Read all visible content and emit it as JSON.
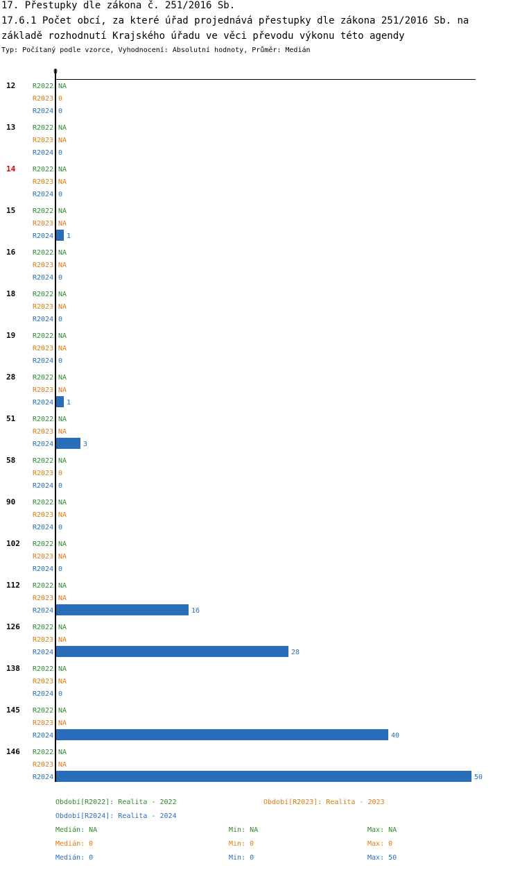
{
  "header": {
    "title1": "17. Přestupky dle zákona č. 251/2016 Sb.",
    "title2": "17.6.1 Počet obcí, za které úřad projednává přestupky dle zákona 251/2016 Sb. na",
    "title3": "základě rozhodnutí Krajského úřadu ve věci převodu výkonu této agendy",
    "subtitle": "Typ: Počítaný podle vzorce, Vyhodnocení: Absolutní hodnoty, Průměr: Medián"
  },
  "colors": {
    "R2022": "#2e8b2e",
    "R2023": "#e07b10",
    "R2024": "#2a6ebb",
    "bar": "#2a6ebb",
    "highlight": "#e00000"
  },
  "chart_data": {
    "type": "bar",
    "orientation": "horizontal",
    "x_tick": "0",
    "xlim": [
      0,
      50
    ],
    "highlight_category": "14",
    "categories": [
      "12",
      "13",
      "14",
      "15",
      "16",
      "18",
      "19",
      "28",
      "51",
      "58",
      "90",
      "102",
      "112",
      "126",
      "138",
      "145",
      "146"
    ],
    "series": [
      {
        "name": "R2022",
        "values": [
          null,
          null,
          null,
          null,
          null,
          null,
          null,
          null,
          null,
          null,
          null,
          null,
          null,
          null,
          null,
          null,
          null
        ]
      },
      {
        "name": "R2023",
        "values": [
          0,
          null,
          null,
          null,
          null,
          null,
          null,
          null,
          null,
          0,
          null,
          null,
          null,
          null,
          null,
          null,
          null
        ]
      },
      {
        "name": "R2024",
        "values": [
          0,
          0,
          0,
          1,
          0,
          0,
          0,
          1,
          3,
          0,
          0,
          0,
          16,
          28,
          0,
          40,
          50
        ]
      }
    ],
    "missing_label": "NA"
  },
  "legend": {
    "r2022": "Období[R2022]: Realita - 2022",
    "r2023": "Období[R2023]: Realita - 2023",
    "r2024": "Období[R2024]: Realita - 2024"
  },
  "stats": [
    {
      "series": "R2022",
      "median": "Medián: NA",
      "min": "Min: NA",
      "max": "Max: NA"
    },
    {
      "series": "R2023",
      "median": "Medián: 0",
      "min": "Min: 0",
      "max": "Max: 0"
    },
    {
      "series": "R2024",
      "median": "Medián: 0",
      "min": "Min: 0",
      "max": "Max: 50"
    }
  ]
}
